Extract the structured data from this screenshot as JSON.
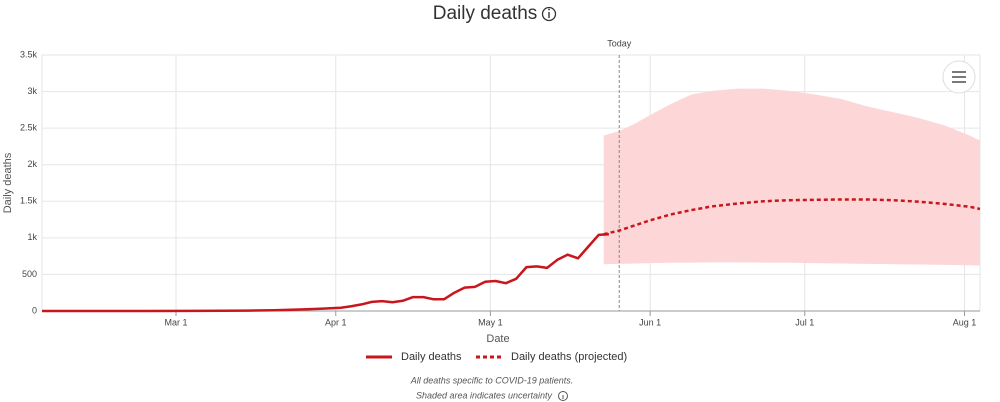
{
  "chart_data": {
    "type": "line",
    "title": "Daily deaths",
    "x_label": "Date",
    "y_label": "Daily deaths",
    "xlim": [
      0,
      182
    ],
    "xticks": [
      {
        "value": 26,
        "label": "Mar 1"
      },
      {
        "value": 57,
        "label": "Apr 1"
      },
      {
        "value": 87,
        "label": "May 1"
      },
      {
        "value": 118,
        "label": "Jun 1"
      },
      {
        "value": 148,
        "label": "Jul 1"
      },
      {
        "value": 179,
        "label": "Aug 1"
      }
    ],
    "ylim": [
      0,
      3500
    ],
    "yticks": [
      0,
      500,
      {
        "value": 1000,
        "label": "1k"
      },
      {
        "value": 1500,
        "label": "1.5k"
      },
      {
        "value": 2000,
        "label": "2k"
      },
      {
        "value": 2500,
        "label": "2.5k"
      },
      {
        "value": 3000,
        "label": "3k"
      },
      {
        "value": 3500,
        "label": "3.5k"
      }
    ],
    "grid": true,
    "today": {
      "x": 112,
      "label": "Today"
    },
    "series": [
      {
        "name": "Daily deaths",
        "color": "#c8161d",
        "x": [
          0,
          10,
          20,
          30,
          40,
          45,
          50,
          54,
          58,
          60,
          62,
          64,
          66,
          68,
          70,
          72,
          74,
          76,
          78,
          80,
          82,
          84,
          86,
          88,
          90,
          92,
          94,
          96,
          98,
          100,
          102,
          104,
          106,
          108,
          110
        ],
        "values": [
          0,
          0,
          0,
          1,
          5,
          10,
          20,
          30,
          45,
          65,
          90,
          125,
          135,
          120,
          140,
          190,
          190,
          160,
          160,
          250,
          320,
          330,
          400,
          410,
          380,
          440,
          600,
          610,
          590,
          700,
          770,
          720,
          880,
          1040,
          1050
        ]
      },
      {
        "name": "Daily deaths (projected)",
        "color": "#c8161d",
        "band_color": "#fdd7d7",
        "x": [
          109,
          112,
          115,
          118,
          122,
          126,
          130,
          135,
          140,
          145,
          150,
          155,
          160,
          165,
          170,
          175,
          180,
          182
        ],
        "values": [
          1050,
          1100,
          1170,
          1240,
          1320,
          1380,
          1430,
          1470,
          1500,
          1515,
          1520,
          1525,
          1525,
          1515,
          1495,
          1465,
          1425,
          1395
        ],
        "upper": [
          2400,
          2460,
          2560,
          2680,
          2830,
          2960,
          3010,
          3040,
          3040,
          3010,
          2960,
          2900,
          2800,
          2720,
          2640,
          2540,
          2400,
          2330
        ],
        "lower": [
          640,
          645,
          650,
          655,
          660,
          662,
          665,
          665,
          662,
          660,
          655,
          650,
          645,
          640,
          635,
          630,
          625,
          620
        ]
      }
    ],
    "notes": [
      "All deaths specific to COVID-19 patients.",
      "Shaded area indicates uncertainty"
    ]
  }
}
